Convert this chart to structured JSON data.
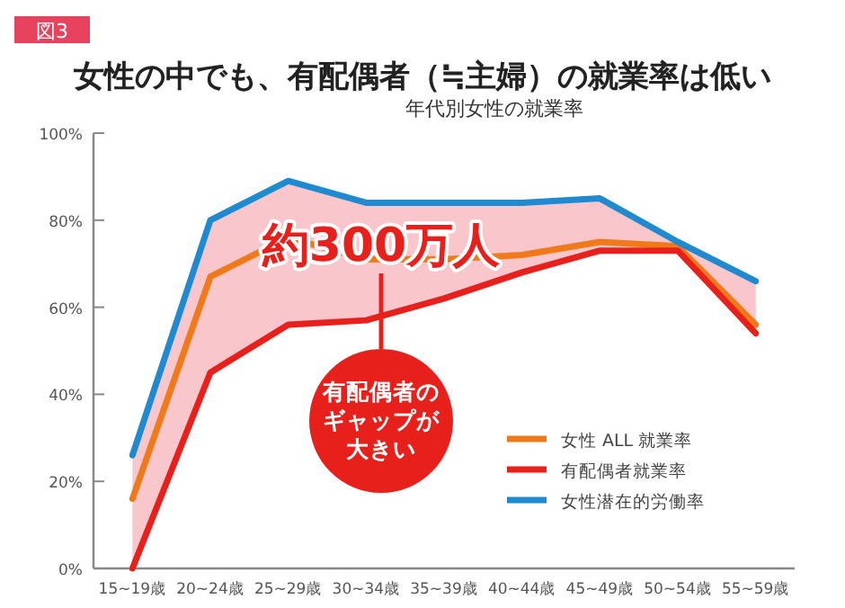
{
  "chart_data": {
    "type": "line",
    "title": "女性の中でも、有配偶者（≒主婦）の就業率は低い",
    "subtitle": "年代別女性の就業率",
    "categories": [
      "15~19歳",
      "20~24歳",
      "25~29歳",
      "30~34歳",
      "35~39歳",
      "40~44歳",
      "45~49歳",
      "50~54歳",
      "55~59歳"
    ],
    "series": [
      {
        "name": "女性 ALL 就業率",
        "color": "#f07a1a",
        "values": [
          16,
          67,
          76,
          71,
          71,
          72,
          75,
          74,
          56
        ],
        "lower": [
          0,
          45,
          56,
          57,
          62,
          68,
          73,
          73,
          54
        ],
        "upper": [
          26,
          80,
          89,
          84,
          84,
          84,
          85,
          75,
          66
        ]
      },
      {
        "name": "有配偶者就業率",
        "color": "#e8201c",
        "values": [
          0,
          45,
          56,
          57,
          62,
          68,
          73,
          73,
          54
        ]
      },
      {
        "name": "女性潜在的労働率",
        "color": "#1f8ad0",
        "values": [
          26,
          80,
          89,
          84,
          84,
          84,
          85,
          75,
          66
        ]
      }
    ],
    "ylim": [
      0,
      100
    ],
    "yticks": [
      {
        "value": 0,
        "label": "0%"
      },
      {
        "value": 20,
        "label": "20%"
      },
      {
        "value": 40,
        "label": "40%"
      },
      {
        "value": 60,
        "label": "60%"
      },
      {
        "value": 80,
        "label": "80%"
      },
      {
        "value": 100,
        "label": "100%"
      }
    ],
    "annotations": [
      "図3",
      "約300万人",
      "有配偶者の",
      "ギャップが",
      "大きい"
    ],
    "grid": false,
    "legend": "bottom right",
    "line_style": "solid"
  }
}
